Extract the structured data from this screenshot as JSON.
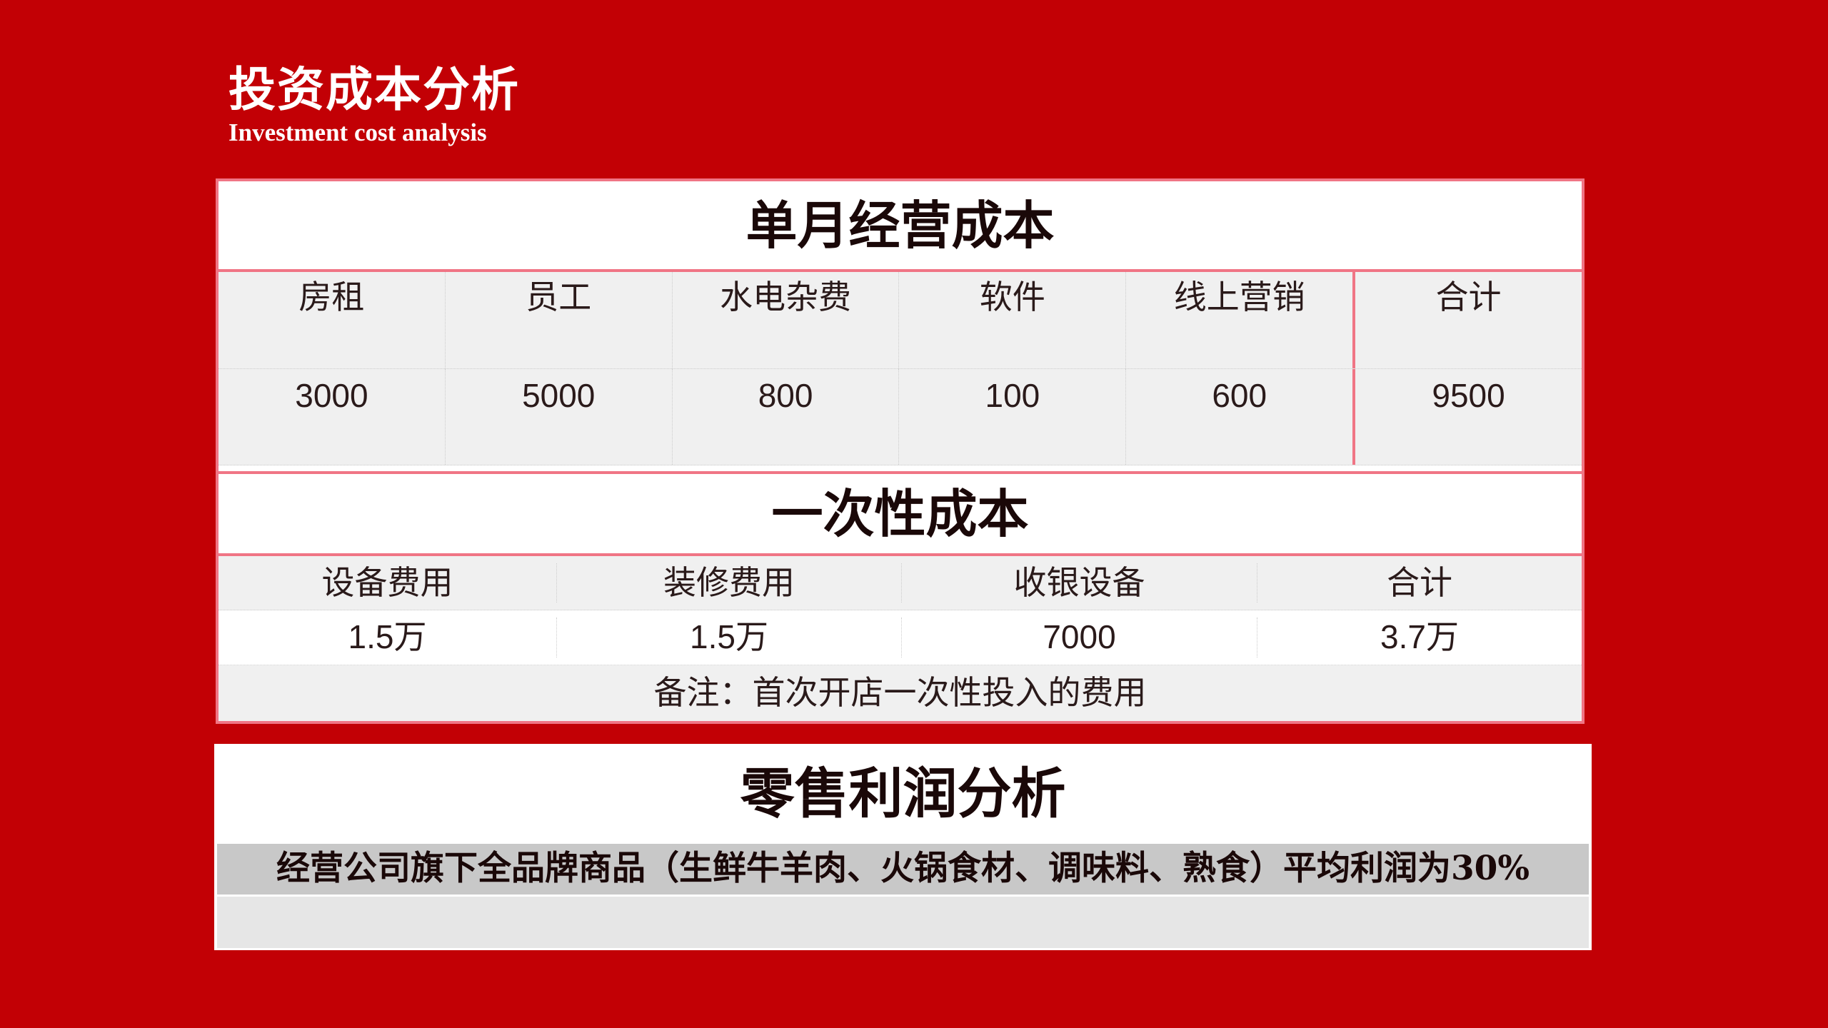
{
  "header": {
    "title": "投资成本分析",
    "subtitle": "Investment cost analysis"
  },
  "monthly": {
    "title": "单月经营成本",
    "columns": [
      "房租",
      "员工",
      "水电杂费",
      "软件",
      "线上营销",
      "合计"
    ],
    "values": [
      "3000",
      "5000",
      "800",
      "100",
      "600",
      "9500"
    ]
  },
  "one_time": {
    "title": "一次性成本",
    "columns": [
      "设备费用",
      "装修费用",
      "收银设备",
      "合计"
    ],
    "values": [
      "1.5万",
      "1.5万",
      "7000",
      "3.7万"
    ],
    "note": "备注：首次开店一次性投入的费用"
  },
  "retail": {
    "title": "零售利润分析",
    "text": "经营公司旗下全品牌商品（生鲜牛羊肉、火锅食材、调味料、熟食）平均利润为30%"
  },
  "colors": {
    "background": "#c20005",
    "border": "#f07585"
  }
}
